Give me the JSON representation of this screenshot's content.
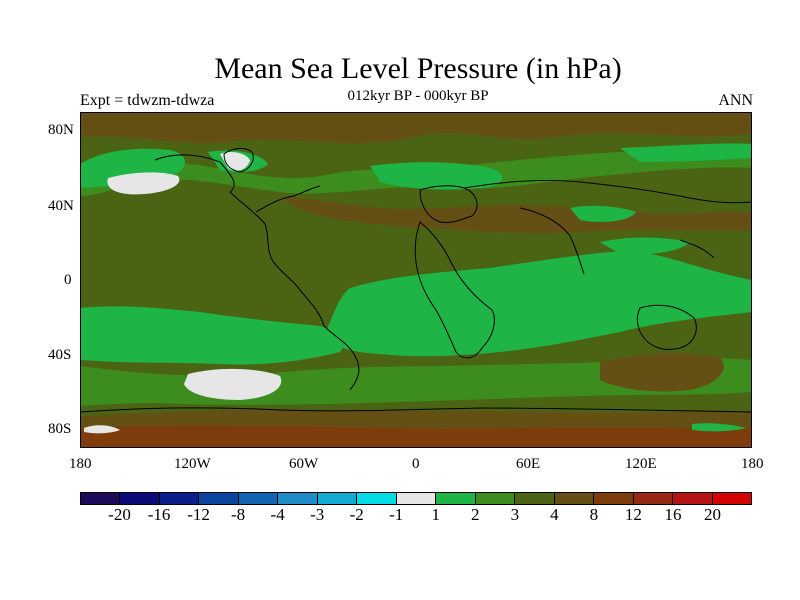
{
  "title": "Mean Sea Level Pressure (in hPa)",
  "subtitle": "012kyr BP - 000kyr BP",
  "experiment": "Expt = tdwzm-tdwza",
  "season": "ANN",
  "lat_ticks": [
    "80N",
    "40N",
    "0",
    "40S",
    "80S"
  ],
  "lon_ticks": [
    "180",
    "120W",
    "60W",
    "0",
    "60E",
    "120E",
    "180"
  ],
  "colorbar": {
    "colors": [
      "#1e0a5a",
      "#0a0a78",
      "#0a1e8c",
      "#0a46a0",
      "#1464b4",
      "#1e8cc8",
      "#14aad2",
      "#00dce6",
      "#e6e6e6",
      "#1eb446",
      "#3c8c1e",
      "#4b6414",
      "#645014",
      "#7d3c0a",
      "#962814",
      "#b41414",
      "#d20000"
    ],
    "labels": [
      "-20",
      "-16",
      "-12",
      "-8",
      "-4",
      "-3",
      "-2",
      "-1",
      "1",
      "2",
      "3",
      "4",
      "8",
      "12",
      "16",
      "20"
    ]
  },
  "colors": {
    "ocean_green": "#1eb446",
    "mid_green": "#3c8c1e",
    "olive": "#4b6414",
    "brown": "#645014",
    "dark_brown": "#7d3c0a",
    "white": "#e6e6e6"
  }
}
